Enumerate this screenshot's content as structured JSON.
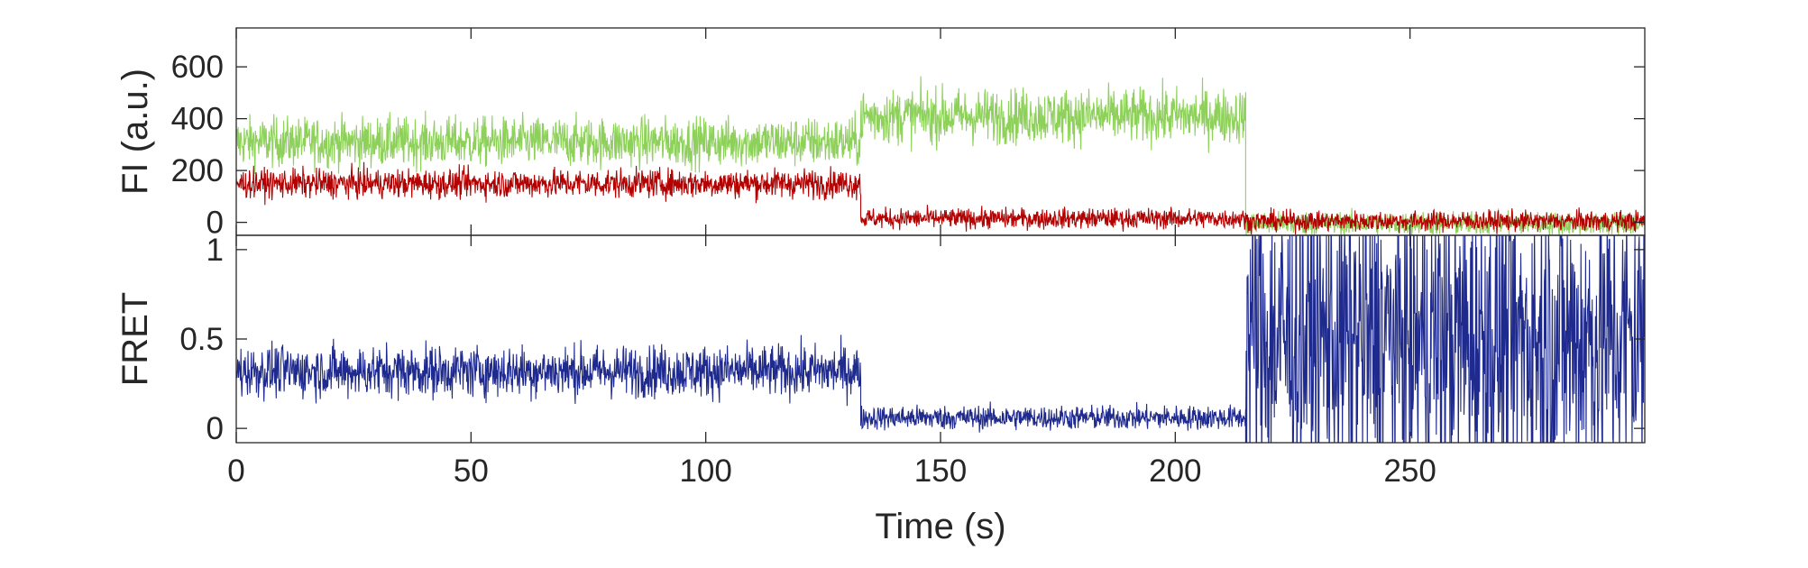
{
  "chart_data": [
    {
      "type": "line",
      "title": "",
      "ylabel": "FI (a.u.)",
      "xlabel": "",
      "xlim": [
        0,
        300
      ],
      "ylim": [
        -50,
        750
      ],
      "xticks": [
        0,
        50,
        100,
        150,
        200,
        250
      ],
      "yticks": [
        0,
        200,
        400,
        600
      ],
      "ytick_labels": [
        "0",
        "200",
        "400",
        "600"
      ],
      "grid": false,
      "legend": "none",
      "series": [
        {
          "color": "#8ed15a",
          "segments": [
            {
              "x": [
                0,
                133
              ],
              "mean": 310,
              "noise": 85
            },
            {
              "x": [
                133,
                215
              ],
              "mean": 410,
              "noise": 95
            },
            {
              "x": [
                215,
                300
              ],
              "mean": -5,
              "noise": 40
            }
          ]
        },
        {
          "color": "#b30000",
          "segments": [
            {
              "x": [
                0,
                133
              ],
              "mean": 150,
              "noise": 50
            },
            {
              "x": [
                133,
                215
              ],
              "mean": 15,
              "noise": 35
            },
            {
              "x": [
                215,
                300
              ],
              "mean": 5,
              "noise": 35
            }
          ]
        }
      ]
    },
    {
      "type": "line",
      "title": "",
      "ylabel": "FRET",
      "xlabel": "Time (s)",
      "xlim": [
        0,
        300
      ],
      "ylim": [
        -0.08,
        1.08
      ],
      "xticks": [
        0,
        50,
        100,
        150,
        200,
        250
      ],
      "xtick_labels": [
        "0",
        "50",
        "100",
        "150",
        "200",
        "250"
      ],
      "yticks": [
        0,
        0.5,
        1
      ],
      "ytick_labels": [
        "0",
        "0.5",
        "1"
      ],
      "grid": false,
      "legend": "none",
      "series": [
        {
          "color": "#1f2a8f",
          "segments": [
            {
              "x": [
                0,
                133
              ],
              "mean": 0.32,
              "noise": 0.13
            },
            {
              "x": [
                133,
                215
              ],
              "mean": 0.06,
              "noise": 0.06
            },
            {
              "x": [
                215,
                300
              ],
              "mean": 0.5,
              "noise": 0.8
            }
          ]
        }
      ]
    }
  ]
}
